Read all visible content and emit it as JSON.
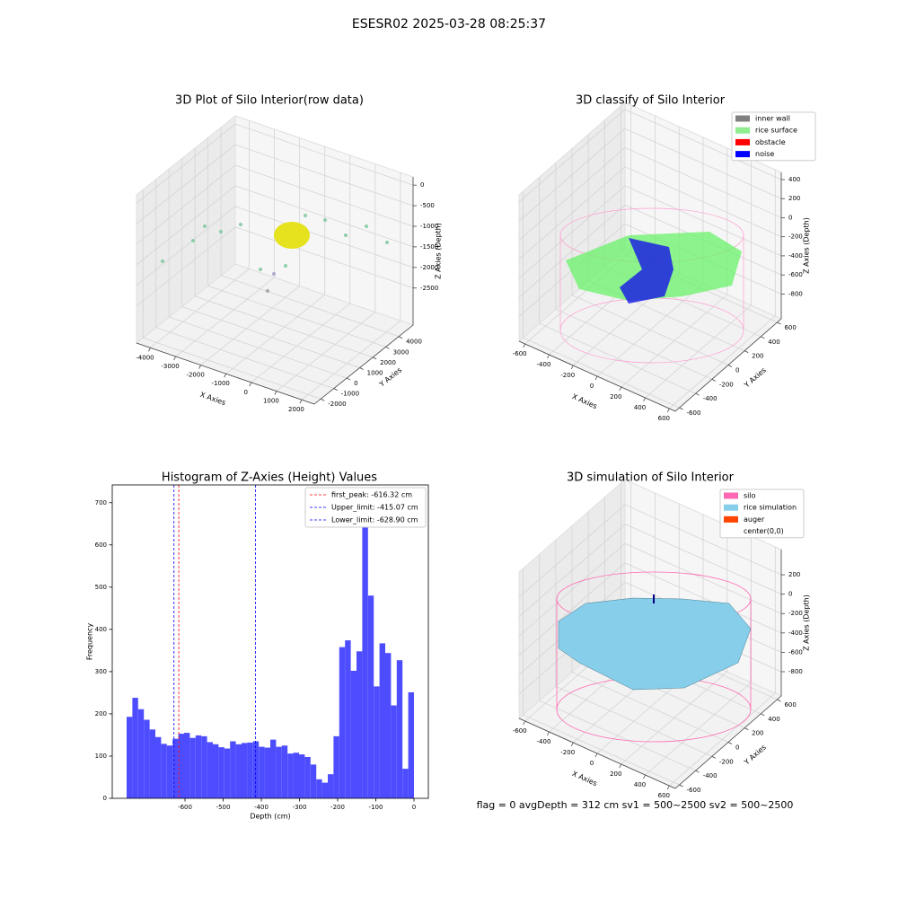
{
  "title": "ESESR02 2025-03-28 08:25:37",
  "footer": "flag = 0     avgDepth = 312 cm  sv1 = 500~2500  sv2 = 500~2500",
  "chart_data": [
    {
      "type": "scatter3d",
      "title": "3D Plot of Silo Interior(row data)",
      "x_label": "X Axies",
      "y_label": "Y Axies",
      "z_label": "Z Axies (Depth)",
      "xlim": [
        -4550,
        2500
      ],
      "ylim": [
        -2500,
        5100
      ],
      "zlim": [
        -3400,
        200
      ],
      "xticks": [
        -4000,
        -3000,
        -2000,
        -1000,
        0,
        1000,
        2000
      ],
      "yticks": [
        -2000,
        -1000,
        0,
        1000,
        2000,
        3000,
        4000
      ],
      "zticks": [
        0,
        -500,
        -1000,
        -1500,
        -2000,
        -2500
      ]
    },
    {
      "type": "scatter3d",
      "title": "3D classify of Silo Interior",
      "x_label": "X Axies",
      "y_label": "Y Axies",
      "z_label": "Z Axies (Depth)",
      "xlim": [
        -650,
        650
      ],
      "ylim": [
        -650,
        650
      ],
      "zlim": [
        -1060,
        475
      ],
      "xticks": [
        -600,
        -400,
        -200,
        0,
        200,
        400,
        600
      ],
      "yticks": [
        -600,
        -400,
        -200,
        0,
        200,
        400,
        600
      ],
      "zticks": [
        400,
        200,
        0,
        -200,
        -400,
        -600,
        -800
      ],
      "legend": [
        {
          "name": "inner wall",
          "color": "#808080"
        },
        {
          "name": "rice surface",
          "color": "#90ee90"
        },
        {
          "name": "obstacle",
          "color": "#ff0000"
        },
        {
          "name": "noise",
          "color": "#0000ff"
        }
      ]
    },
    {
      "type": "histogram",
      "title": "Histogram of Z-Axies (Height) Values",
      "x_label": "Depth (cm)",
      "y_label": "Frequency",
      "color": "#4d4dff",
      "bins": [
        -753,
        -737.94,
        -722.88,
        -707.82,
        -692.76,
        -677.7,
        -662.64,
        -647.58,
        -632.52,
        -617.46,
        -602.4,
        -587.34,
        -572.28,
        -557.22,
        -542.16,
        -527.1,
        -512.04,
        -496.98,
        -481.92,
        -466.86,
        -451.8,
        -436.74,
        -421.68,
        -406.62,
        -391.56,
        -376.5,
        -361.44,
        -346.38,
        -331.32,
        -316.26,
        -301.2,
        -286.14,
        -271.08,
        -256.02,
        -240.96,
        -225.9,
        -210.84,
        -195.78,
        -180.72,
        -165.66,
        -150.6,
        -135.54,
        -120.48,
        -105.42,
        -90.36,
        -75.3,
        -60.24,
        -45.18,
        -30.12,
        -15.06,
        0
      ],
      "values": [
        193,
        238,
        211,
        186,
        163,
        145,
        129,
        125,
        141,
        153,
        155,
        143,
        149,
        147,
        133,
        128,
        121,
        118,
        135,
        128,
        131,
        132,
        135,
        122,
        120,
        139,
        122,
        125,
        106,
        108,
        104,
        98,
        80,
        45,
        37,
        57,
        147,
        358,
        374,
        302,
        348,
        700,
        480,
        265,
        367,
        344,
        220,
        327,
        70,
        251
      ],
      "xlim": [
        -790.65,
        37.65
      ],
      "ylim": [
        0,
        742
      ],
      "xticks": [
        -600,
        -500,
        -400,
        -300,
        -200,
        -100,
        0
      ],
      "yticks": [
        0,
        100,
        200,
        300,
        400,
        500,
        600,
        700
      ],
      "lines": [
        {
          "name": "first_peak: -616.32 cm",
          "value": -616.32,
          "color": "#ff0000"
        },
        {
          "name": "Upper_limit: -415.07 cm",
          "value": -415.07,
          "color": "#0000ff"
        },
        {
          "name": "Lower_limit: -628.90 cm",
          "value": -628.9,
          "color": "#0000ff"
        }
      ]
    },
    {
      "type": "surface3d",
      "title": "3D simulation of Silo Interior",
      "x_label": "X Axies",
      "y_label": "Y Axies",
      "z_label": "Z Axies (Depth)",
      "xlim": [
        -650,
        650
      ],
      "ylim": [
        -650,
        650
      ],
      "zlim": [
        -1050,
        460
      ],
      "xticks": [
        -600,
        -400,
        -200,
        0,
        200,
        400,
        600
      ],
      "yticks": [
        -600,
        -400,
        -200,
        0,
        200,
        400,
        600
      ],
      "zticks": [
        200,
        0,
        -200,
        -400,
        -600,
        -800
      ],
      "legend": [
        {
          "name": "silo",
          "color": "#ff69b4"
        },
        {
          "name": "rice simulation",
          "color": "#87ceeb"
        },
        {
          "name": "auger",
          "color": "#ff4500"
        },
        {
          "name": "center(0,0)",
          "color": "#ffffff"
        }
      ]
    }
  ]
}
